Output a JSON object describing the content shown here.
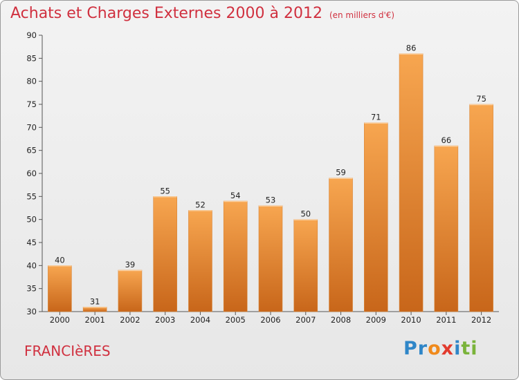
{
  "header": {
    "title": "Achats et Charges Externes 2000 à 2012",
    "subtitle": "(en milliers d'€)"
  },
  "footer": {
    "commune": "FRANCIèRES",
    "logo": [
      "Pr",
      "o",
      "x",
      "i",
      "t",
      "i"
    ]
  },
  "colors": {
    "bar_top": "#f7a650",
    "bar_bottom": "#c8661a",
    "title": "#d0303f"
  },
  "chart_data": {
    "type": "bar",
    "title": "Achats et Charges Externes 2000 à 2012",
    "subtitle": "(en milliers d'€)",
    "categories": [
      "2000",
      "2001",
      "2002",
      "2003",
      "2004",
      "2005",
      "2006",
      "2007",
      "2008",
      "2009",
      "2010",
      "2011",
      "2012"
    ],
    "values": [
      40,
      31,
      39,
      55,
      52,
      54,
      53,
      50,
      59,
      71,
      86,
      66,
      75
    ],
    "ylim": [
      30,
      90
    ],
    "yticks": [
      30,
      35,
      40,
      45,
      50,
      55,
      60,
      65,
      70,
      75,
      80,
      85,
      90
    ],
    "grid": false,
    "data_labels": true
  }
}
